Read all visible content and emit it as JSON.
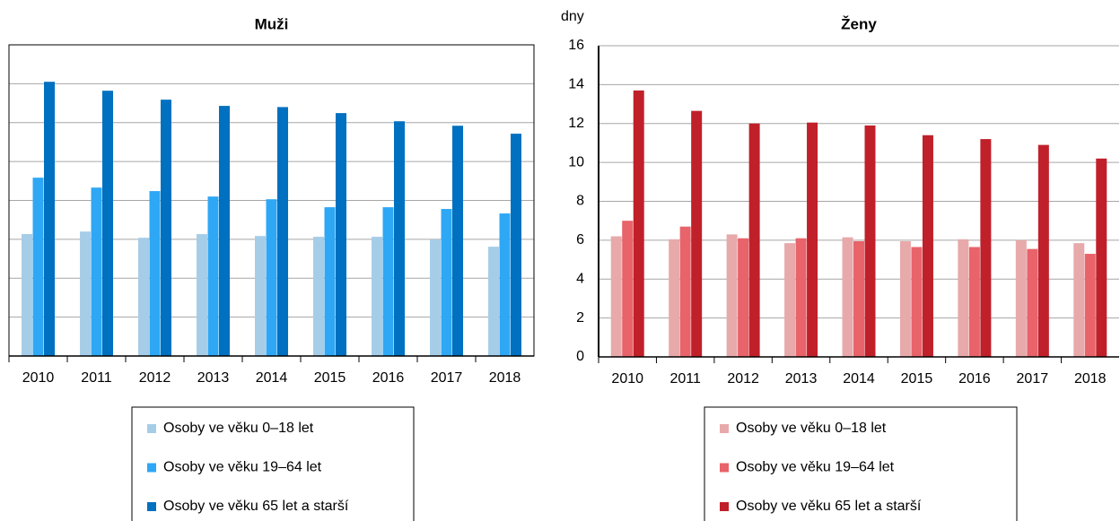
{
  "chart_data": [
    {
      "type": "bar",
      "title": "Muži",
      "categories": [
        "2010",
        "2011",
        "2012",
        "2013",
        "2014",
        "2015",
        "2016",
        "2017",
        "2018"
      ],
      "series": [
        {
          "name": "Osoby ve věku 0–18 let",
          "color": "#a6cde8",
          "values": [
            6.27,
            6.4,
            6.08,
            6.27,
            6.17,
            6.13,
            6.13,
            5.99,
            5.62
          ]
        },
        {
          "name": "Osoby ve věku 19–64 let",
          "color": "#2ea7f5",
          "values": [
            9.17,
            8.66,
            8.48,
            8.2,
            8.06,
            7.65,
            7.65,
            7.56,
            7.33
          ]
        },
        {
          "name": "Osoby ve věku 65 let a starší",
          "color": "#0070c0",
          "values": [
            14.1,
            13.64,
            13.18,
            12.86,
            12.8,
            12.49,
            12.07,
            11.84,
            11.43
          ]
        }
      ],
      "ylim": [
        0,
        16
      ],
      "yticks": [
        0,
        2,
        4,
        6,
        8,
        10,
        12,
        14,
        16
      ],
      "show_tick_labels": false,
      "grid": true,
      "border": true
    },
    {
      "type": "bar",
      "title": "Ženy",
      "y_label": "dny",
      "categories": [
        "2010",
        "2011",
        "2012",
        "2013",
        "2014",
        "2015",
        "2016",
        "2017",
        "2018"
      ],
      "series": [
        {
          "name": "Osoby ve věku 0–18 let",
          "color": "#e8a9ab",
          "values": [
            6.2,
            6.05,
            6.3,
            5.85,
            6.15,
            5.95,
            6.05,
            6.0,
            5.85
          ]
        },
        {
          "name": "Osoby ve věku 19–64 let",
          "color": "#e8636a",
          "values": [
            7.0,
            6.7,
            6.1,
            6.1,
            5.95,
            5.65,
            5.65,
            5.55,
            5.3
          ]
        },
        {
          "name": "Osoby ve věku 65 let a starší",
          "color": "#c0202a",
          "values": [
            13.7,
            12.65,
            12.0,
            12.05,
            11.9,
            11.4,
            11.2,
            10.9,
            10.2
          ]
        }
      ],
      "ylim": [
        0,
        16
      ],
      "yticks": [
        0,
        2,
        4,
        6,
        8,
        10,
        12,
        14,
        16
      ],
      "show_tick_labels": true,
      "grid": true,
      "border": false
    }
  ]
}
